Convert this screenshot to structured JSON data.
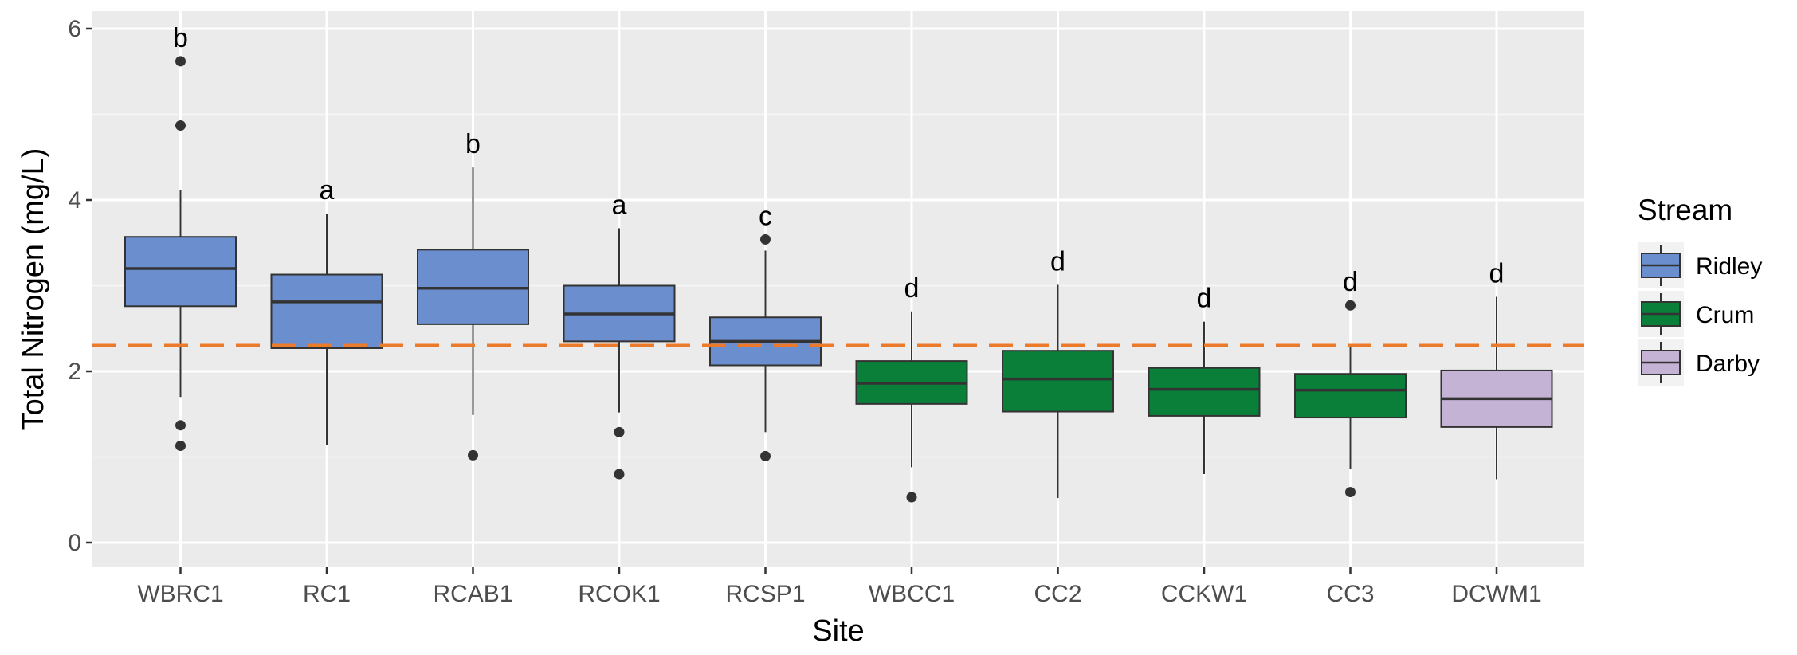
{
  "chart_data": {
    "type": "box",
    "title": "",
    "xlabel": "Site",
    "ylabel": "Total Nitrogen (mg/L)",
    "ylim": [
      -0.3,
      6.2
    ],
    "y_ticks": [
      0,
      2,
      4,
      6
    ],
    "y_tick_labels": [
      "0",
      "2",
      "4",
      "6"
    ],
    "reference_line": {
      "y": 2.3,
      "style": "dashed",
      "color": "#ec7a2b"
    },
    "legend": {
      "title": "Stream",
      "placement": "right",
      "entries": [
        {
          "name": "Ridley",
          "color": "#6b8fce"
        },
        {
          "name": "Crum",
          "color": "#0a7f3a"
        },
        {
          "name": "Darby",
          "color": "#c5b3d6"
        }
      ]
    },
    "categories": [
      "WBRC1",
      "RC1",
      "RCAB1",
      "RCOK1",
      "RCSP1",
      "WBCC1",
      "CC2",
      "CCKW1",
      "CC3",
      "DCWM1"
    ],
    "boxes": [
      {
        "site": "WBRC1",
        "stream": "Ridley",
        "min": 1.7,
        "q1": 2.76,
        "median": 3.2,
        "q3": 3.57,
        "max": 4.12,
        "outliers": [
          5.62,
          4.87,
          1.37,
          1.13
        ],
        "letter": "b"
      },
      {
        "site": "RC1",
        "stream": "Ridley",
        "min": 1.14,
        "q1": 2.27,
        "median": 2.81,
        "q3": 3.13,
        "max": 3.84,
        "outliers": [],
        "letter": "a"
      },
      {
        "site": "RCAB1",
        "stream": "Ridley",
        "min": 1.49,
        "q1": 2.55,
        "median": 2.97,
        "q3": 3.42,
        "max": 4.38,
        "outliers": [
          1.02
        ],
        "letter": "b"
      },
      {
        "site": "RCOK1",
        "stream": "Ridley",
        "min": 1.52,
        "q1": 2.35,
        "median": 2.67,
        "q3": 3.0,
        "max": 3.67,
        "outliers": [
          1.29,
          0.8
        ],
        "letter": "a"
      },
      {
        "site": "RCSP1",
        "stream": "Ridley",
        "min": 1.29,
        "q1": 2.07,
        "median": 2.35,
        "q3": 2.63,
        "max": 3.41,
        "outliers": [
          3.54,
          1.01
        ],
        "letter": "c"
      },
      {
        "site": "WBCC1",
        "stream": "Crum",
        "min": 0.88,
        "q1": 1.62,
        "median": 1.86,
        "q3": 2.12,
        "max": 2.7,
        "outliers": [
          0.53
        ],
        "letter": "d"
      },
      {
        "site": "CC2",
        "stream": "Crum",
        "min": 0.52,
        "q1": 1.53,
        "median": 1.91,
        "q3": 2.24,
        "max": 3.01,
        "outliers": [],
        "letter": "d"
      },
      {
        "site": "CCKW1",
        "stream": "Crum",
        "min": 0.8,
        "q1": 1.48,
        "median": 1.79,
        "q3": 2.04,
        "max": 2.58,
        "outliers": [],
        "letter": "d"
      },
      {
        "site": "CC3",
        "stream": "Crum",
        "min": 0.86,
        "q1": 1.46,
        "median": 1.78,
        "q3": 1.97,
        "max": 2.3,
        "outliers": [
          2.77,
          0.59
        ],
        "letter": "d"
      },
      {
        "site": "DCWM1",
        "stream": "Darby",
        "min": 0.74,
        "q1": 1.35,
        "median": 1.68,
        "q3": 2.01,
        "max": 2.87,
        "outliers": [],
        "letter": "d"
      }
    ]
  }
}
